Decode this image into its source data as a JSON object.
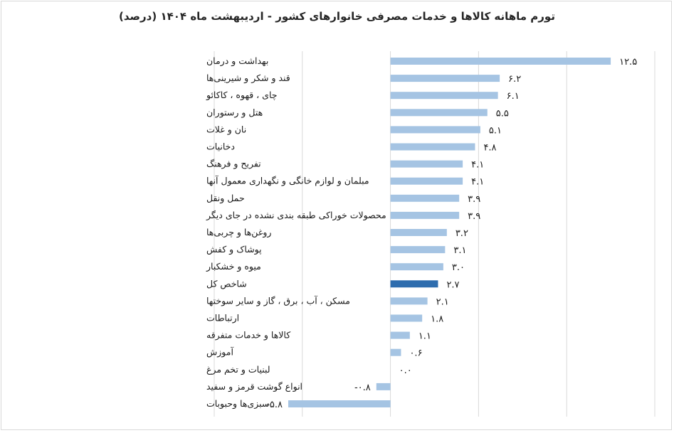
{
  "chart_data": {
    "type": "bar",
    "orientation": "horizontal",
    "title": "تورم ماهانه کالاها و خدمات مصرفی خانوارهای کشور - اردیبهشت ماه ۱۴۰۴ (درصد)",
    "categories": [
      "بهداشت و درمان",
      "قند و شکر و شیرینی‌ها",
      "چای ، قهوه ، کاکائو",
      "هتل و رستوران",
      "نان و غلات",
      "دخانیات",
      "تفریح و فرهنگ",
      "مبلمان و لوازم خانگی و نگهداری معمول آنها",
      "حمل ونقل",
      "محصولات خوراکی طبقه بندی نشده در جای دیگر",
      "روغن‌ها و چربی‌ها",
      "پوشاک و کفش",
      "میوه و خشکبار",
      "شاخص کل",
      "مسکن ، آب ، برق ، گاز و سایر سوختها",
      "ارتباطات",
      "کالاها و خدمات متفرقه",
      "آموزش",
      "لبنیات و تخم مرغ",
      "انواع گوشت قرمز و سفید",
      "سبزی‌ها وحبوبات"
    ],
    "values": [
      12.5,
      6.2,
      6.1,
      5.5,
      5.1,
      4.8,
      4.1,
      4.1,
      3.9,
      3.9,
      3.2,
      3.1,
      3.0,
      2.7,
      2.1,
      1.8,
      1.1,
      0.6,
      0.0,
      -0.8,
      -5.8
    ],
    "value_labels": [
      "۱۲.۵",
      "۶.۲",
      "۶.۱",
      "۵.۵",
      "۵.۱",
      "۴.۸",
      "۴.۱",
      "۴.۱",
      "۳.۹",
      "۳.۹",
      "۳.۲",
      "۳.۱",
      "۳.۰",
      "۲.۷",
      "۲.۱",
      "۱.۸",
      "۱.۱",
      "۰.۶",
      "۰.۰",
      "-۰.۸",
      "-۵.۸"
    ],
    "highlight_category": "شاخص کل",
    "xlim": [
      -10,
      15
    ],
    "xticks": [
      -10,
      -5,
      0,
      5,
      10,
      15
    ],
    "grid": true,
    "colors": {
      "bar": "#a5c4e3",
      "highlight": "#2e6dae",
      "grid": "#d9d9d9"
    }
  }
}
